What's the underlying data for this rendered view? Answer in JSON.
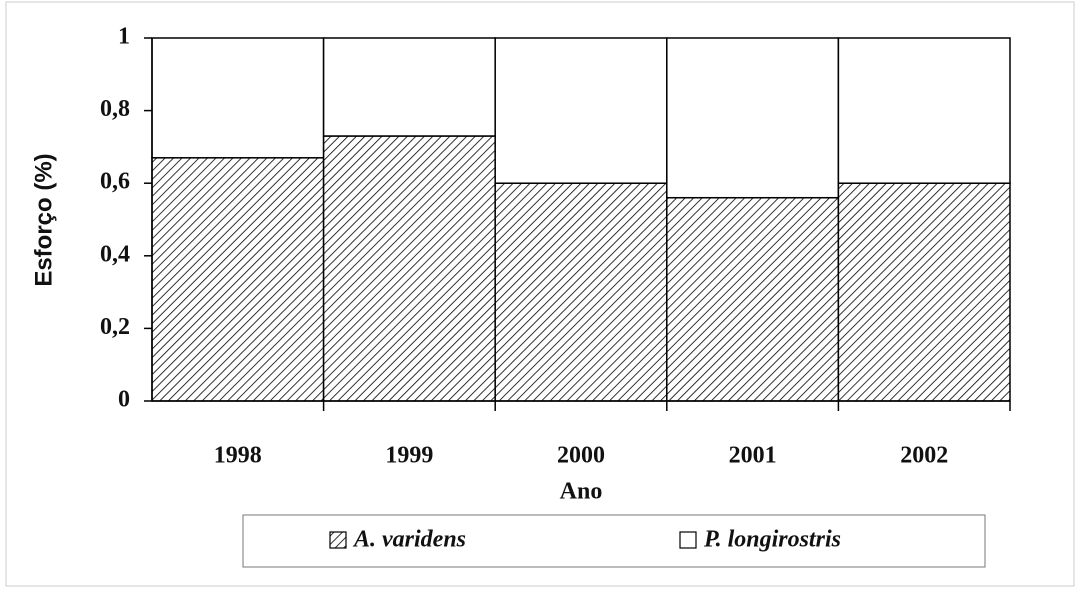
{
  "chart_data": {
    "type": "bar",
    "stacked": true,
    "x_label": "Ano",
    "y_label": "Esforço (%)",
    "categories": [
      "1998",
      "1999",
      "2000",
      "2001",
      "2002"
    ],
    "series": [
      {
        "name": "A. varidens",
        "color": "#000000",
        "pattern": "diagonal-hatch",
        "values": [
          0.67,
          0.73,
          0.6,
          0.56,
          0.6
        ]
      },
      {
        "name": "P. longirostris",
        "color": "#ffffff",
        "values": [
          0.33,
          0.27,
          0.4,
          0.44,
          0.4
        ]
      }
    ],
    "ylim": [
      0,
      1
    ],
    "yticks": [
      0,
      {
        "value": 0.2,
        "label": "0,2"
      },
      {
        "value": 0.4,
        "label": "0,4"
      },
      {
        "value": 0.6,
        "label": "0,6"
      },
      {
        "value": 0.8,
        "label": "0,8"
      },
      1
    ],
    "legend": "bottom"
  }
}
